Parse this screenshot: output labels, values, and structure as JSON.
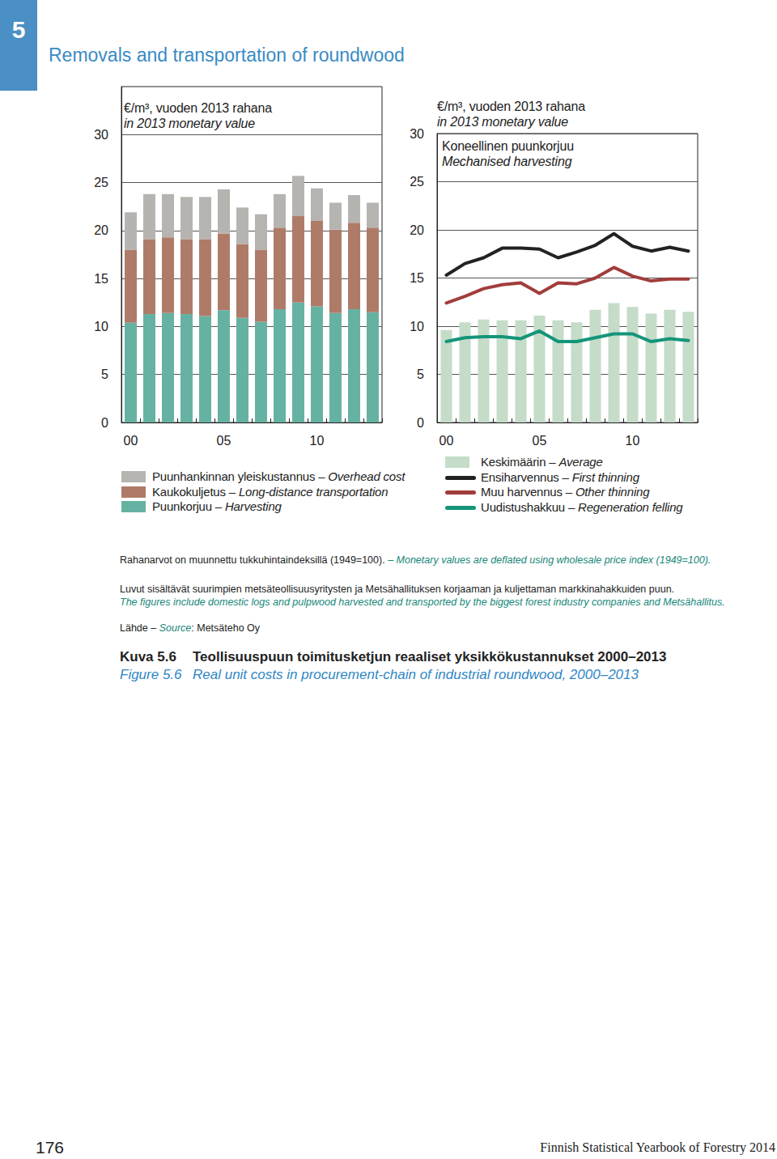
{
  "page": {
    "section_number": "5",
    "section_title": "Removals and transportation of roundwood",
    "notes": [
      [
        {
          "text": "Rahanarvot on muunnettu tukkuhintaindeksillä (1949=100). ",
          "lang": "fi"
        },
        {
          "text": "– Monetary values are deflated using wholesale price index (1949=100).",
          "lang": "en"
        }
      ],
      [
        {
          "text": "Luvut sisältävät suurimpien metsäteollisuusyritysten ja Metsähallituksen korjaaman ja kuljettaman markkinahakkuiden puun.",
          "lang": "fi"
        }
      ],
      [
        {
          "text": "The figures include domestic logs and pulpwood harvested and transported by the biggest forest industry companies and Metsähallitus.",
          "lang": "en"
        }
      ],
      [
        {
          "text": "Lähde – ",
          "lang": "fi"
        },
        {
          "text": "Source",
          "lang": "en"
        },
        {
          "text": ": Metsäteho Oy",
          "lang": "fi"
        }
      ]
    ],
    "caption": [
      {
        "label": "Kuva 5.6",
        "text": "Teollisuuspuun toimitusketjun reaaliset yksikkökustannukset 2000–2013",
        "lang": "fi"
      },
      {
        "label": "Figure 5.6",
        "text": "Real unit costs in procurement-chain of industrial roundwood, 2000–2013",
        "lang": "en"
      }
    ],
    "page_number": "176",
    "footer": "Finnish Statistical Yearbook of Forestry 2014"
  },
  "chart_data": [
    {
      "type": "bar",
      "title": "€/m³, vuoden 2013 rahana\nin 2013 monetary value",
      "stacked": true,
      "grid": true,
      "categories": [
        "00",
        null,
        null,
        null,
        null,
        "05",
        null,
        null,
        null,
        null,
        "10",
        null,
        null,
        null
      ],
      "ylim": [
        0,
        35
      ],
      "yticks": [
        0,
        5,
        10,
        15,
        20,
        25,
        30
      ],
      "series": [
        {
          "name": "Puunhankinnan yleiskustannus – Overhead cost",
          "color": "#b6b4b0",
          "values": [
            3.9,
            4.7,
            4.5,
            4.4,
            4.4,
            4.6,
            3.8,
            3.7,
            3.5,
            4.2,
            3.4,
            2.8,
            2.9,
            2.6
          ]
        },
        {
          "name": "Kaukokuljetus – Long-distance transportation",
          "color": "#af7b69",
          "values": [
            7.6,
            7.8,
            7.9,
            7.8,
            8.0,
            8.0,
            7.7,
            7.5,
            8.5,
            9.0,
            8.9,
            8.7,
            9.0,
            8.8
          ]
        },
        {
          "name": "Puunkorjuu – Harvesting",
          "color": "#66b2a2",
          "values": [
            10.4,
            11.3,
            11.4,
            11.3,
            11.1,
            11.7,
            10.9,
            10.5,
            11.8,
            12.5,
            12.1,
            11.4,
            11.8,
            11.5
          ]
        }
      ]
    },
    {
      "type": "bar",
      "title": "€/m³, vuoden 2013 rahana\nin 2013 monetary value",
      "subtitle": "Koneellinen puunkorjuu\nMechanised harvesting",
      "grid": true,
      "categories": [
        "00",
        null,
        null,
        null,
        null,
        "05",
        null,
        null,
        null,
        null,
        "10",
        null,
        null,
        null
      ],
      "ylim": [
        0,
        30
      ],
      "yticks": [
        0,
        5,
        10,
        15,
        20,
        25,
        30
      ],
      "series": [
        {
          "name": "Keskimäärin – Average",
          "type": "bar",
          "color": "#c4dcc8",
          "values": [
            9.6,
            10.4,
            10.7,
            10.6,
            10.6,
            11.1,
            10.6,
            10.4,
            11.7,
            12.4,
            12.0,
            11.3,
            11.7,
            11.5
          ]
        },
        {
          "name": "Ensiharvennus – First thinning",
          "type": "line",
          "color": "#222222",
          "values": [
            15.3,
            16.5,
            17.1,
            18.1,
            18.1,
            18.0,
            17.1,
            17.7,
            18.4,
            19.6,
            18.3,
            17.8,
            18.2,
            17.8
          ]
        },
        {
          "name": "Muu harvennus – Other thinning",
          "type": "line",
          "color": "#a13d3b",
          "values": [
            12.4,
            13.1,
            13.9,
            14.3,
            14.5,
            13.4,
            14.5,
            14.4,
            15.0,
            16.1,
            15.2,
            14.7,
            14.9,
            14.9
          ]
        },
        {
          "name": "Uudistushakkuu – Regeneration felling",
          "type": "line",
          "color": "#14957a",
          "values": [
            8.4,
            8.8,
            8.9,
            8.9,
            8.7,
            9.5,
            8.4,
            8.4,
            8.8,
            9.2,
            9.2,
            8.4,
            8.7,
            8.5
          ]
        }
      ]
    }
  ]
}
